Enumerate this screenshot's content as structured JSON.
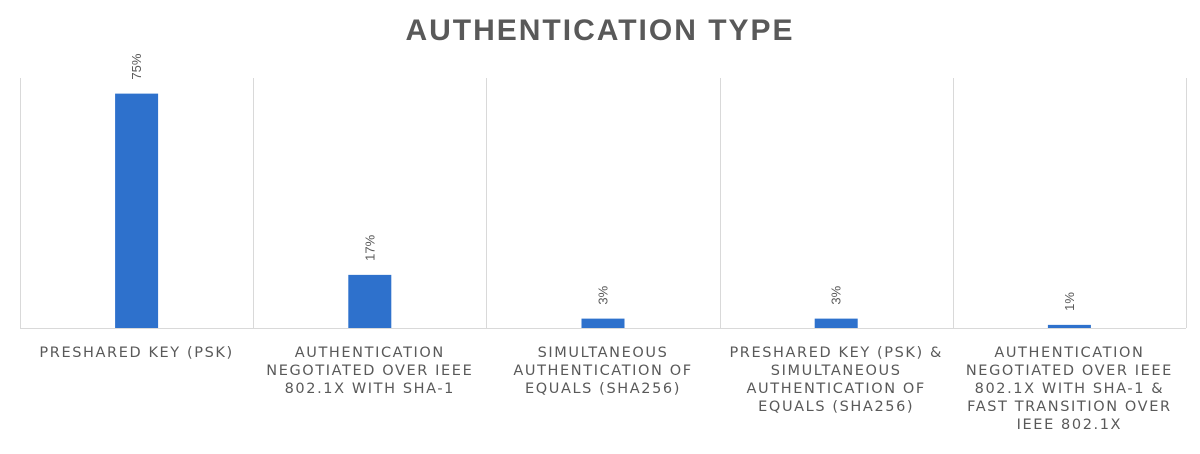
{
  "chart_data": {
    "type": "bar",
    "title": "AUTHENTICATION TYPE",
    "categories": [
      "PRESHARED KEY (PSK)",
      "AUTHENTICATION NEGOTIATED OVER IEEE 802.1X WITH SHA-1",
      "SIMULTANEOUS AUTHENTICATION OF EQUALS (SHA256)",
      "PRESHARED KEY (PSK) & SIMULTANEOUS AUTHENTICATION OF EQUALS (SHA256)",
      "AUTHENTICATION NEGOTIATED OVER IEEE 802.1X WITH SHA-1 & FAST TRANSITION OVER IEEE 802.1X"
    ],
    "values": [
      75,
      17,
      3,
      3,
      1
    ],
    "data_labels": [
      "75%",
      "17%",
      "3%",
      "3%",
      "1%"
    ],
    "xlabel": "",
    "ylabel": "",
    "ylim": [
      0,
      80
    ],
    "grid": "vertical category separators",
    "legend": "none",
    "bar_color": "#2e71cc",
    "text_color": "#595959",
    "gridline_color": "#d9d9d9"
  }
}
